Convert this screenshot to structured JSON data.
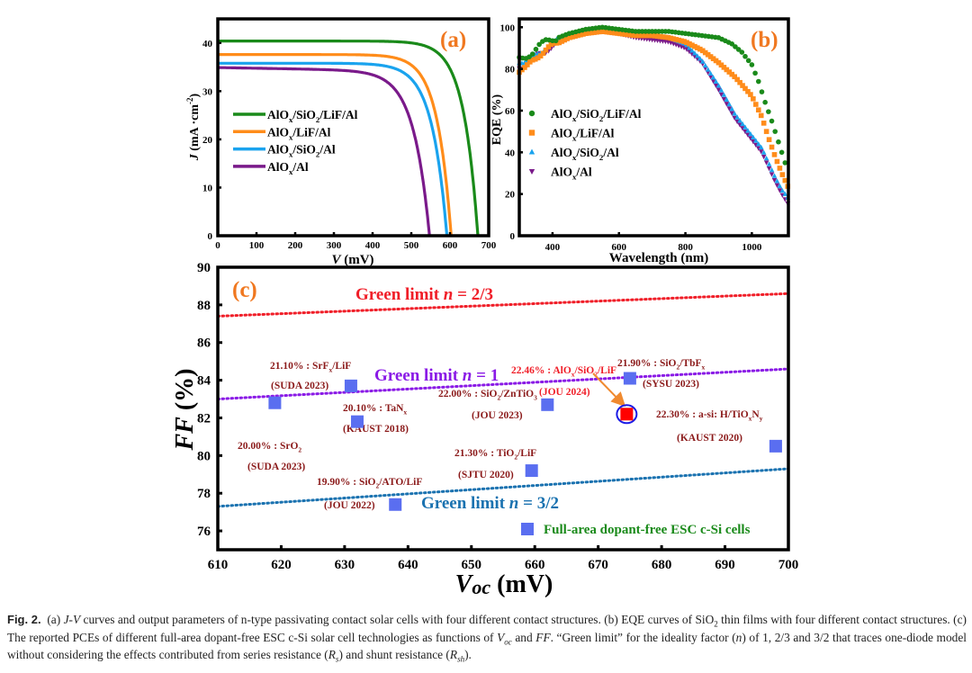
{
  "chart_data": [
    {
      "id": "a",
      "type": "line",
      "panel_label": "(a)",
      "xlabel": "V (mV)",
      "ylabel": "J (mA·cm⁻²)",
      "xlim": [
        0,
        700
      ],
      "ylim": [
        0,
        45
      ],
      "xticks": [
        0,
        100,
        200,
        300,
        400,
        500,
        600,
        700
      ],
      "yticks": [
        0,
        10,
        20,
        30,
        40
      ],
      "legend_position": "center-left",
      "series": [
        {
          "name": "AlOx/SiO2/LiF/Al",
          "label_main": "AlO",
          "label_parts": [
            "x",
            "/SiO",
            "2",
            "/LiF/Al"
          ],
          "color": "#1a8a1a",
          "jsc": 40.4,
          "voc": 672,
          "knee": 0.055
        },
        {
          "name": "AlOx/LiF/Al",
          "color": "#ff8c1a",
          "jsc": 37.6,
          "voc": 603,
          "knee": 0.06
        },
        {
          "name": "AlOx/SiO2/Al",
          "color": "#1aa3ee",
          "jsc": 35.8,
          "voc": 592,
          "knee": 0.065
        },
        {
          "name": "AlOx/Al",
          "color": "#7a1a8a",
          "jsc": 34.9,
          "voc": 547,
          "knee": 0.075,
          "slope": 0.004
        }
      ]
    },
    {
      "id": "b",
      "type": "scatter",
      "panel_label": "(b)",
      "xlabel": "Wavelength (nm)",
      "ylabel": "EQE (%)",
      "xlim": [
        300,
        1110
      ],
      "ylim": [
        0,
        104
      ],
      "xticks": [
        400,
        600,
        800,
        1000
      ],
      "yticks": [
        0,
        20,
        40,
        60,
        80,
        100
      ],
      "legend_position": "center-left",
      "series": [
        {
          "name": "AlOx/SiO2/LiF/Al",
          "marker": "circle",
          "color": "#1a8a1a",
          "points": [
            [
              300,
              85
            ],
            [
              320,
              86
            ],
            [
              340,
              88
            ],
            [
              360,
              91
            ],
            [
              380,
              93
            ],
            [
              400,
              94
            ],
            [
              450,
              97
            ],
            [
              500,
              99
            ],
            [
              550,
              100
            ],
            [
              600,
              99
            ],
            [
              650,
              98
            ],
            [
              700,
              98
            ],
            [
              750,
              98
            ],
            [
              800,
              97
            ],
            [
              850,
              96
            ],
            [
              900,
              95
            ],
            [
              940,
              92
            ],
            [
              970,
              88
            ],
            [
              1000,
              82
            ],
            [
              1020,
              74
            ],
            [
              1040,
              64
            ],
            [
              1060,
              55
            ],
            [
              1080,
              45
            ],
            [
              1100,
              35
            ]
          ]
        },
        {
          "name": "AlOx/LiF/Al",
          "marker": "square",
          "color": "#ff8c1a",
          "points": [
            [
              300,
              79
            ],
            [
              320,
              80
            ],
            [
              340,
              84
            ],
            [
              360,
              87
            ],
            [
              380,
              89
            ],
            [
              400,
              91
            ],
            [
              450,
              95
            ],
            [
              500,
              97
            ],
            [
              550,
              98
            ],
            [
              600,
              97
            ],
            [
              650,
              96
            ],
            [
              700,
              96
            ],
            [
              750,
              95
            ],
            [
              800,
              93
            ],
            [
              850,
              89
            ],
            [
              900,
              83
            ],
            [
              950,
              76
            ],
            [
              1000,
              67
            ],
            [
              1030,
              57
            ],
            [
              1050,
              47
            ],
            [
              1070,
              38
            ],
            [
              1090,
              30
            ],
            [
              1110,
              23
            ]
          ]
        },
        {
          "name": "AlOx/SiO2/Al",
          "marker": "triangle-up",
          "color": "#1aa3ee",
          "points": [
            [
              300,
              84
            ],
            [
              320,
              83
            ],
            [
              340,
              85
            ],
            [
              360,
              88
            ],
            [
              380,
              90
            ],
            [
              400,
              92
            ],
            [
              450,
              96
            ],
            [
              500,
              98
            ],
            [
              550,
              99
            ],
            [
              600,
              97
            ],
            [
              650,
              96
            ],
            [
              700,
              96
            ],
            [
              750,
              95
            ],
            [
              800,
              92
            ],
            [
              850,
              84
            ],
            [
              900,
              72
            ],
            [
              950,
              58
            ],
            [
              1000,
              48
            ],
            [
              1030,
              42
            ],
            [
              1050,
              35
            ],
            [
              1070,
              28
            ],
            [
              1090,
              22
            ],
            [
              1110,
              18
            ]
          ]
        },
        {
          "name": "AlOx/Al",
          "marker": "triangle-down",
          "color": "#7a1a8a",
          "points": [
            [
              300,
              81
            ],
            [
              320,
              82
            ],
            [
              340,
              84
            ],
            [
              360,
              87
            ],
            [
              380,
              89
            ],
            [
              400,
              91
            ],
            [
              450,
              95
            ],
            [
              500,
              97
            ],
            [
              550,
              98
            ],
            [
              600,
              97
            ],
            [
              650,
              95
            ],
            [
              700,
              94
            ],
            [
              750,
              93
            ],
            [
              800,
              90
            ],
            [
              850,
              83
            ],
            [
              900,
              70
            ],
            [
              950,
              56
            ],
            [
              1000,
              46
            ],
            [
              1030,
              40
            ],
            [
              1050,
              33
            ],
            [
              1070,
              26
            ],
            [
              1090,
              20
            ],
            [
              1110,
              15
            ]
          ]
        }
      ]
    },
    {
      "id": "c",
      "type": "scatter",
      "panel_label": "(c)",
      "xlabel": "Voc (mV)",
      "ylabel": "FF (%)",
      "xlim": [
        610,
        700
      ],
      "ylim": [
        75,
        90
      ],
      "xticks": [
        610,
        620,
        630,
        640,
        650,
        660,
        670,
        680,
        690,
        700
      ],
      "yticks": [
        76,
        78,
        80,
        82,
        84,
        86,
        88,
        90
      ],
      "legend_label": "Full-area dopant-free ESC c-Si cells",
      "legend_position": "bottom-right",
      "limit_lines": [
        {
          "name": "Green limit n = 2/3",
          "text": "Green limit ",
          "n_text": "n",
          "eq_text": " = 2/3",
          "color": "#f01e28",
          "y_start": 87.4,
          "y_end": 88.6
        },
        {
          "name": "Green limit n = 1",
          "text": "Green limit ",
          "n_text": "n",
          "eq_text": " = 1",
          "color": "#8a1ae6",
          "y_start": 83.0,
          "y_end": 84.6
        },
        {
          "name": "Green limit n = 3/2",
          "text": "Green limit ",
          "n_text": "n",
          "eq_text": " = 3/2",
          "color": "#1a72b0",
          "y_start": 77.3,
          "y_end": 79.3
        }
      ],
      "points": [
        {
          "voc": 619,
          "ff": 82.8,
          "pce": "20.00%",
          "material": "SrO",
          "sub": "2",
          "source": "(SUDA 2023)",
          "highlight": false
        },
        {
          "voc": 631,
          "ff": 83.7,
          "pce": "21.10%",
          "material": "SrF",
          "sub": "x",
          "tail": "/LiF",
          "source": "(SUDA 2023)",
          "highlight": false
        },
        {
          "voc": 632,
          "ff": 81.8,
          "pce": "20.10%",
          "material": "TaN",
          "sub": "x",
          "source": "(KAUST 2018)",
          "highlight": false
        },
        {
          "voc": 638,
          "ff": 77.4,
          "pce": "19.90%",
          "material": "SiO",
          "sub": "2",
          "tail": "/ATO/LiF",
          "source": "(JOU 2022)",
          "highlight": false
        },
        {
          "voc": 659.5,
          "ff": 79.2,
          "pce": "21.30%",
          "material": "TiO",
          "sub": "2",
          "tail": "/LiF",
          "source": "(SJTU 2020)",
          "highlight": false
        },
        {
          "voc": 662,
          "ff": 82.7,
          "pce": "22.00%",
          "material": "SiO",
          "sub": "2",
          "tail": "/ZnTiO",
          "sub2": "3",
          "source": "(JOU 2023)",
          "highlight": false
        },
        {
          "voc": 674.5,
          "ff": 82.2,
          "pce": "22.46%",
          "material": "AlO",
          "sub": "x",
          "tail": "/SiO",
          "sub2": "2",
          "tail2": "/LiF",
          "source": "(JOU 2024)",
          "highlight": true
        },
        {
          "voc": 675,
          "ff": 84.1,
          "pce": "21.90%",
          "material": "SiO",
          "sub": "2",
          "tail": "/TbF",
          "sub2": "x",
          "source": "(SYSU 2023)",
          "highlight": false
        },
        {
          "voc": 698,
          "ff": 80.5,
          "pce": "22.30%",
          "material": "a-si: H/TiO",
          "sub": "x",
          "tail": "N",
          "sub2": "y",
          "source": "(KAUST 2020)",
          "highlight": false
        }
      ]
    }
  ],
  "colors": {
    "panel_label": "#f07820",
    "annotation": "#8b1a1a",
    "highlight_annotation": "#f01e28",
    "marker": "#5a6ef0",
    "highlight_marker": "#ff0000",
    "highlight_ring": "#1a1ae6",
    "arrow": "#f08a30",
    "legend_text_c": "#1a8a1a"
  },
  "caption": {
    "fig_label": "Fig. 2.",
    "text_a1": "(a) ",
    "text_a_italic": "J-V",
    "text_a2": " curves and output parameters of n-type passivating contact solar cells with four different contact structures. (b) EQE curves of SiO",
    "sub_2": "2",
    "text_b": " thin films with four different contact structures. (c) The reported PCEs of different full-area dopant-free ESC c-Si solar cell technologies as functions of ",
    "voc_v": "V",
    "voc_sub": "oc",
    "text_c1": " and ",
    "ff_italic": "FF",
    "text_c2": ". “Green limit” for the ideality factor (",
    "n_italic": "n",
    "text_c3": ") of 1, 2/3 and 3/2 that traces one-diode model without considering the effects contributed from series resistance (",
    "rs_r": "R",
    "rs_sub": "s",
    "text_c4": ") and shunt resistance (",
    "rsh_r": "R",
    "rsh_sub": "sh",
    "text_c5": ")."
  }
}
